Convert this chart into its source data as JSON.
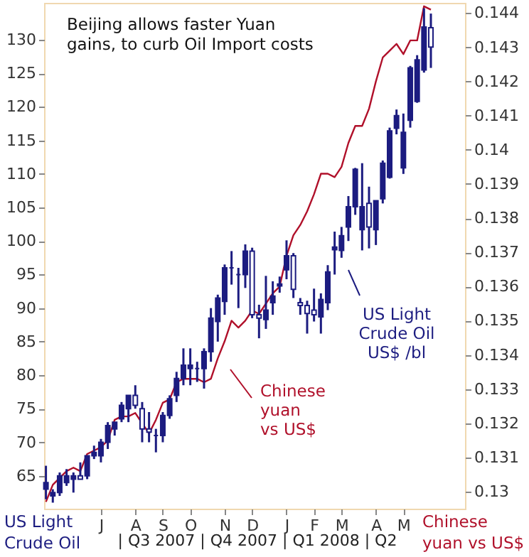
{
  "chart_data": {
    "type": "candlestick",
    "title": "Beijing allows faster Yuan\ngains, to curb Oil Import costs",
    "ylabel": "US Light\nCrude Oil",
    "y2label": "Chinese\nyuan vs US$",
    "annotations": [
      "| Q3 2007 | Q4 2007 | Q1 2008 | Q2"
    ],
    "categories": [
      null,
      null,
      null,
      null,
      null,
      null,
      null,
      null,
      "J",
      null,
      null,
      null,
      null,
      "A",
      null,
      null,
      null,
      "S",
      null,
      null,
      null,
      "O",
      null,
      null,
      null,
      null,
      "N",
      null,
      null,
      null,
      "D",
      null,
      null,
      null,
      null,
      "J",
      null,
      null,
      null,
      "F",
      null,
      null,
      null,
      "M",
      null,
      null,
      null,
      null,
      "A",
      null,
      null,
      null,
      "M",
      null,
      null,
      null,
      null
    ],
    "series": [
      {
        "type": "line",
        "axis": "y2",
        "name": "Chinese\nyuan\nvs US$",
        "color": "#b0102a",
        "values": [
          0.1297,
          0.1302,
          0.1304,
          0.1306,
          0.1307,
          0.1306,
          0.1311,
          0.1312,
          0.1313,
          0.1315,
          0.1321,
          0.1322,
          0.1322,
          0.1323,
          0.132,
          0.1317,
          0.1321,
          0.1326,
          0.1327,
          0.1332,
          0.1333,
          0.1333,
          0.1333,
          0.1332,
          0.1333,
          0.1339,
          0.1344,
          0.135,
          0.1348,
          0.135,
          0.1353,
          0.1352,
          0.1355,
          0.1358,
          0.136,
          0.1369,
          0.1375,
          0.1378,
          0.1382,
          0.1387,
          0.1393,
          0.1393,
          0.1392,
          0.1395,
          0.1402,
          0.1407,
          0.1407,
          0.1412,
          0.142,
          0.1427,
          0.1429,
          0.1431,
          0.1428,
          0.1432,
          0.1432,
          0.1442,
          0.1441
        ]
      },
      {
        "name": "US Light\nCrude Oil\nUS$ /bl",
        "color": "#1c1c80",
        "ohlc": [
          [
            63,
            66.5,
            61.5,
            64
          ],
          [
            62,
            63,
            61,
            62.5
          ],
          [
            62.5,
            65.5,
            62,
            65
          ],
          [
            64,
            66,
            63.5,
            65
          ],
          [
            64.5,
            65.5,
            62.5,
            65
          ],
          [
            65,
            67,
            64.5,
            64.5
          ],
          [
            65,
            68,
            64.5,
            68
          ],
          [
            68,
            69.5,
            67.5,
            68.5
          ],
          [
            68,
            70.5,
            67,
            70
          ],
          [
            70,
            73,
            69,
            72.5
          ],
          [
            72,
            73,
            71,
            73
          ],
          [
            73.5,
            76,
            73,
            75.5
          ],
          [
            75,
            77,
            73,
            77
          ],
          [
            77,
            78.5,
            75,
            75.5
          ],
          [
            75,
            76,
            70,
            72
          ],
          [
            72,
            74.5,
            70,
            71.5
          ],
          [
            71,
            72,
            68.5,
            71
          ],
          [
            71,
            74.5,
            70,
            74
          ],
          [
            74,
            77,
            73.5,
            76.5
          ],
          [
            77,
            80.5,
            76,
            79.5
          ],
          [
            79.5,
            84,
            78.5,
            81.5
          ],
          [
            81,
            84,
            78.5,
            81.5
          ],
          [
            81,
            82,
            79,
            81
          ],
          [
            81,
            84,
            78,
            83.5
          ],
          [
            83.5,
            90,
            82,
            88.5
          ],
          [
            88,
            92,
            85,
            91.5
          ],
          [
            91,
            96.5,
            89,
            96
          ],
          [
            96,
            98.5,
            93.5,
            96
          ],
          [
            95,
            96,
            90,
            95
          ],
          [
            95,
            99.5,
            93,
            98.5
          ],
          [
            98.5,
            99,
            88.5,
            89
          ],
          [
            89,
            90.5,
            85.5,
            88.5
          ],
          [
            88.3,
            94.8,
            86.9,
            89.7
          ],
          [
            90.8,
            94,
            89,
            91.8
          ],
          [
            93.3,
            94.7,
            92.3,
            93.6
          ],
          [
            95.7,
            100.1,
            94.3,
            97.8
          ],
          [
            97.8,
            98.2,
            91.5,
            92.8
          ],
          [
            90.8,
            91.5,
            89,
            90.4
          ],
          [
            90.4,
            91.1,
            86.2,
            89.2
          ],
          [
            89.7,
            92.9,
            88,
            89
          ],
          [
            88.7,
            92.2,
            86.2,
            91.3
          ],
          [
            90.8,
            96.4,
            89.7,
            95.4
          ],
          [
            98.7,
            101.4,
            95,
            99.1
          ],
          [
            98.6,
            102.1,
            97.5,
            100.8
          ],
          [
            102.1,
            106.7,
            100,
            105.1
          ],
          [
            105.1,
            110.9,
            103.9,
            110.7
          ],
          [
            101.7,
            111.6,
            98.6,
            105.1
          ],
          [
            105.6,
            108.1,
            98.9,
            102.1
          ],
          [
            101.7,
            106,
            99.4,
            106
          ],
          [
            106.3,
            112,
            105.6,
            111.6
          ],
          [
            109.5,
            116.9,
            109.3,
            116.4
          ],
          [
            116.8,
            119.6,
            115.9,
            118.7
          ],
          [
            110.9,
            119,
            110,
            116.2
          ],
          [
            118,
            126.1,
            116.9,
            125.8
          ],
          [
            120.8,
            127.7,
            120.6,
            127
          ],
          [
            125.5,
            134.7,
            125.1,
            131.9
          ],
          [
            131.8,
            133.9,
            125.8,
            128.9
          ]
        ]
      }
    ],
    "ylim": [
      60.1,
      135.5
    ],
    "yticks": [
      65,
      70,
      75,
      80,
      85,
      90,
      95,
      100,
      105,
      110,
      115,
      120,
      125,
      130
    ],
    "y2lim": [
      0.1295,
      0.1443
    ],
    "y2ticks": [
      0.13,
      0.131,
      0.132,
      0.133,
      0.134,
      0.135,
      0.136,
      0.137,
      0.138,
      0.139,
      0.14,
      0.141,
      0.142,
      0.143,
      0.144
    ],
    "grid": false,
    "legend": "bottom right"
  }
}
